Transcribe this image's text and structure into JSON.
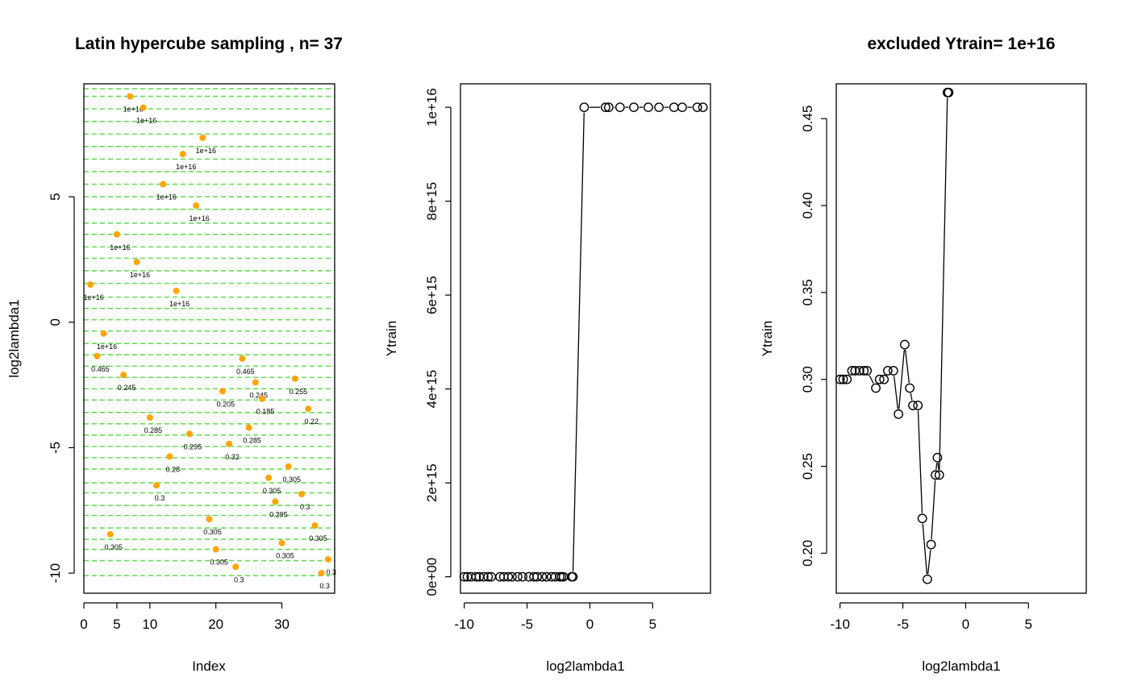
{
  "chart_data": [
    {
      "type": "scatter",
      "title": "Latin hypercube sampling , n= 37",
      "xlabel": "Index",
      "ylabel": "log2lambda1",
      "xlim": [
        0,
        38
      ],
      "ylim": [
        -10.8,
        9.5
      ],
      "xticks": [
        0,
        5,
        10,
        20,
        30
      ],
      "yticks": [
        -10,
        -5,
        0,
        5
      ],
      "grid": "horizontal dashed green lines at each sampled level",
      "colors": {
        "point": "#ffa500",
        "grid": "#66dd55"
      },
      "points": [
        {
          "x": 1,
          "y": 1.5,
          "label": "1e+16"
        },
        {
          "x": 2,
          "y": -1.35,
          "label": "0.465"
        },
        {
          "x": 3,
          "y": -0.45,
          "label": "1e+16"
        },
        {
          "x": 4,
          "y": -8.45,
          "label": "0.305"
        },
        {
          "x": 5,
          "y": 3.5,
          "label": "1e+16"
        },
        {
          "x": 6,
          "y": -2.1,
          "label": "0.245"
        },
        {
          "x": 7,
          "y": 9.0,
          "label": "1e+16"
        },
        {
          "x": 8,
          "y": 2.4,
          "label": "1e+16"
        },
        {
          "x": 9,
          "y": 8.55,
          "label": "1e+16"
        },
        {
          "x": 10,
          "y": -3.8,
          "label": "0.285"
        },
        {
          "x": 11,
          "y": -6.5,
          "label": "0.3"
        },
        {
          "x": 12,
          "y": 5.5,
          "label": "1e+16"
        },
        {
          "x": 13,
          "y": -5.35,
          "label": "0.28"
        },
        {
          "x": 14,
          "y": 1.25,
          "label": "1e+16"
        },
        {
          "x": 15,
          "y": 6.7,
          "label": "1e+16"
        },
        {
          "x": 16,
          "y": -4.45,
          "label": "0.295"
        },
        {
          "x": 17,
          "y": 4.65,
          "label": "1e+16"
        },
        {
          "x": 18,
          "y": 7.35,
          "label": "1e+16"
        },
        {
          "x": 19,
          "y": -7.85,
          "label": "0.305"
        },
        {
          "x": 20,
          "y": -9.05,
          "label": "0.305"
        },
        {
          "x": 21,
          "y": -2.75,
          "label": "0.205"
        },
        {
          "x": 22,
          "y": -4.85,
          "label": "0.32"
        },
        {
          "x": 23,
          "y": -9.75,
          "label": "0.3"
        },
        {
          "x": 24,
          "y": -1.45,
          "label": "0.465"
        },
        {
          "x": 25,
          "y": -4.2,
          "label": "0.285"
        },
        {
          "x": 26,
          "y": -2.4,
          "label": "0.245"
        },
        {
          "x": 27,
          "y": -3.05,
          "label": "0.185"
        },
        {
          "x": 28,
          "y": -6.2,
          "label": "0.305"
        },
        {
          "x": 29,
          "y": -7.15,
          "label": "0.295"
        },
        {
          "x": 30,
          "y": -8.8,
          "label": "0.305"
        },
        {
          "x": 31,
          "y": -5.75,
          "label": "0.305"
        },
        {
          "x": 32,
          "y": -2.25,
          "label": "0.255"
        },
        {
          "x": 33,
          "y": -6.85,
          "label": "0.3"
        },
        {
          "x": 34,
          "y": -3.45,
          "label": "0.22"
        },
        {
          "x": 35,
          "y": -8.1,
          "label": "0.305"
        },
        {
          "x": 36,
          "y": -10.0,
          "label": "0.3"
        },
        {
          "x": 37,
          "y": -9.45,
          "label": "0.3"
        }
      ]
    },
    {
      "type": "line",
      "title": "",
      "xlabel": "log2lambda1",
      "ylabel": "Ytrain",
      "xlim": [
        -10.3,
        9.6
      ],
      "ylim": [
        -350000000000000.0,
        1.05e+16
      ],
      "xticks": [
        -10,
        -5,
        0,
        5
      ],
      "yticks": [
        0,
        2000000000000000.0,
        4000000000000000.0,
        6000000000000000.0,
        8000000000000000.0,
        1e+16
      ],
      "ytick_labels": [
        "0e+00",
        "2e+15",
        "4e+15",
        "6e+15",
        "8e+15",
        "1e+16"
      ],
      "markers": "open circles joined by line",
      "x": [
        -10.0,
        -9.75,
        -9.45,
        -9.05,
        -8.8,
        -8.45,
        -8.1,
        -7.85,
        -7.15,
        -6.85,
        -6.5,
        -6.2,
        -5.75,
        -5.35,
        -4.85,
        -4.45,
        -4.2,
        -3.8,
        -3.45,
        -3.05,
        -2.75,
        -2.4,
        -2.25,
        -2.1,
        -1.45,
        -1.35,
        -0.45,
        1.25,
        1.5,
        2.4,
        3.5,
        4.65,
        5.5,
        6.7,
        7.35,
        8.55,
        9.0
      ],
      "y": [
        0,
        0,
        0,
        0,
        0,
        0,
        0,
        0,
        0,
        0,
        0,
        0,
        0,
        0,
        0,
        0,
        0,
        0,
        0,
        0,
        0,
        0,
        0,
        0,
        0,
        0,
        1e+16,
        1e+16,
        1e+16,
        1e+16,
        1e+16,
        1e+16,
        1e+16,
        1e+16,
        1e+16,
        1e+16,
        1e+16
      ]
    },
    {
      "type": "line",
      "title": "excluded Ytrain= 1e+16",
      "xlabel": "log2lambda1",
      "ylabel": "Ytrain",
      "xlim": [
        -10.3,
        9.6
      ],
      "ylim": [
        0.177,
        0.47
      ],
      "xticks": [
        -10,
        -5,
        0,
        5
      ],
      "yticks": [
        0.2,
        0.25,
        0.3,
        0.35,
        0.4,
        0.45
      ],
      "ytick_labels": [
        "0.20",
        "0.25",
        "0.30",
        "0.35",
        "0.40",
        "0.45"
      ],
      "markers": "open circles joined by line",
      "x": [
        -10.0,
        -9.75,
        -9.45,
        -9.05,
        -8.8,
        -8.45,
        -8.1,
        -7.85,
        -7.15,
        -6.85,
        -6.5,
        -6.2,
        -5.75,
        -5.35,
        -4.85,
        -4.45,
        -4.2,
        -3.8,
        -3.45,
        -3.05,
        -2.75,
        -2.4,
        -2.25,
        -2.1,
        -1.45,
        -1.35
      ],
      "y": [
        0.3,
        0.3,
        0.3,
        0.305,
        0.305,
        0.305,
        0.305,
        0.305,
        0.295,
        0.3,
        0.3,
        0.305,
        0.305,
        0.28,
        0.32,
        0.295,
        0.285,
        0.285,
        0.22,
        0.185,
        0.205,
        0.245,
        0.255,
        0.245,
        0.465,
        0.465
      ]
    }
  ]
}
